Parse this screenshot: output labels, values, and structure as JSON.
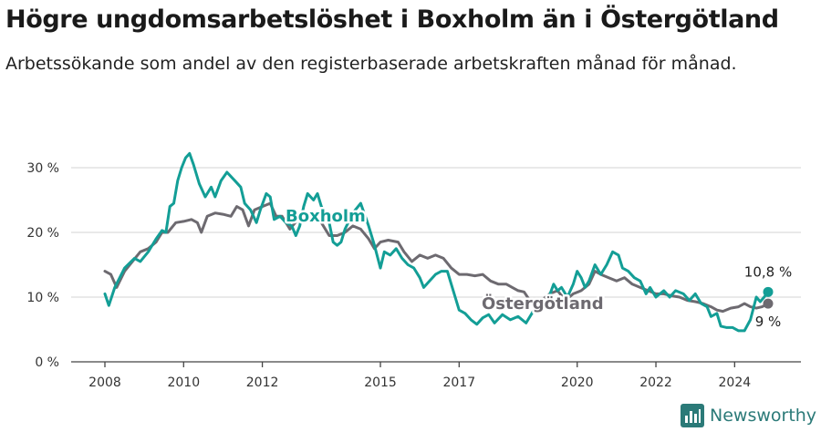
{
  "title": "Högre ungdomsarbetslöshet i Boxholm än i Östergötland",
  "subtitle": "Arbetssökande som andel av den registerbaserade arbetskraften månad för månad.",
  "brand": "Newsworthy",
  "colors": {
    "boxholm": "#139e96",
    "ostergotland": "#6d6a70",
    "grid": "#dcdcdc",
    "axis": "#444444",
    "brand": "#2b7a78"
  },
  "chart_data": {
    "type": "line",
    "title": "Högre ungdomsarbetslöshet i Boxholm än i Östergötland",
    "xlabel": "",
    "ylabel": "",
    "xlim": [
      2008,
      2024.85
    ],
    "ylim": [
      0,
      30
    ],
    "y_ticks": [
      0,
      10,
      20,
      30
    ],
    "y_tick_labels": [
      "0 %",
      "10 %",
      "20 %",
      "30 %"
    ],
    "x_ticks": [
      2008,
      2010,
      2012,
      2015,
      2017,
      2020,
      2022,
      2024
    ],
    "x_tick_labels": [
      "2008",
      "2010",
      "2012",
      "2015",
      "2017",
      "2020",
      "2022",
      "2024"
    ],
    "grid": true,
    "series": [
      {
        "name": "Boxholm",
        "end_label": "10,8 %",
        "points": [
          [
            2008.0,
            10.5
          ],
          [
            2008.1,
            8.7
          ],
          [
            2008.25,
            11.5
          ],
          [
            2008.5,
            14.5
          ],
          [
            2008.75,
            16.0
          ],
          [
            2008.9,
            15.5
          ],
          [
            2009.1,
            17.0
          ],
          [
            2009.3,
            19.0
          ],
          [
            2009.45,
            20.3
          ],
          [
            2009.55,
            20.0
          ],
          [
            2009.65,
            24.0
          ],
          [
            2009.75,
            24.5
          ],
          [
            2009.85,
            28.0
          ],
          [
            2009.95,
            30.0
          ],
          [
            2010.05,
            31.5
          ],
          [
            2010.15,
            32.2
          ],
          [
            2010.25,
            30.5
          ],
          [
            2010.4,
            27.5
          ],
          [
            2010.55,
            25.5
          ],
          [
            2010.7,
            27.0
          ],
          [
            2010.8,
            25.5
          ],
          [
            2010.95,
            28.0
          ],
          [
            2011.1,
            29.3
          ],
          [
            2011.3,
            28.0
          ],
          [
            2011.45,
            27.0
          ],
          [
            2011.55,
            24.5
          ],
          [
            2011.7,
            23.5
          ],
          [
            2011.85,
            21.5
          ],
          [
            2011.95,
            23.5
          ],
          [
            2012.1,
            26.0
          ],
          [
            2012.2,
            25.5
          ],
          [
            2012.3,
            22.0
          ],
          [
            2012.45,
            22.5
          ],
          [
            2012.6,
            21.5
          ],
          [
            2012.75,
            21.0
          ],
          [
            2012.85,
            19.5
          ],
          [
            2012.95,
            21.0
          ],
          [
            2013.05,
            24.0
          ],
          [
            2013.15,
            26.0
          ],
          [
            2013.3,
            25.0
          ],
          [
            2013.4,
            26.0
          ],
          [
            2013.5,
            24.0
          ],
          [
            2013.6,
            23.0
          ],
          [
            2013.7,
            21.5
          ],
          [
            2013.8,
            18.5
          ],
          [
            2013.9,
            18.0
          ],
          [
            2014.0,
            18.5
          ],
          [
            2014.1,
            20.5
          ],
          [
            2014.3,
            23.0
          ],
          [
            2014.5,
            24.5
          ],
          [
            2014.7,
            21.0
          ],
          [
            2014.85,
            18.0
          ],
          [
            2015.0,
            14.5
          ],
          [
            2015.1,
            17.0
          ],
          [
            2015.25,
            16.5
          ],
          [
            2015.4,
            17.5
          ],
          [
            2015.55,
            16.0
          ],
          [
            2015.7,
            15.0
          ],
          [
            2015.85,
            14.5
          ],
          [
            2016.0,
            13.0
          ],
          [
            2016.1,
            11.5
          ],
          [
            2016.25,
            12.5
          ],
          [
            2016.4,
            13.5
          ],
          [
            2016.55,
            14.0
          ],
          [
            2016.7,
            14.0
          ],
          [
            2016.8,
            12.0
          ],
          [
            2016.9,
            10.0
          ],
          [
            2017.0,
            8.0
          ],
          [
            2017.15,
            7.5
          ],
          [
            2017.3,
            6.5
          ],
          [
            2017.45,
            5.8
          ],
          [
            2017.6,
            6.8
          ],
          [
            2017.75,
            7.3
          ],
          [
            2017.9,
            6.0
          ],
          [
            2018.1,
            7.3
          ],
          [
            2018.3,
            6.5
          ],
          [
            2018.5,
            7.0
          ],
          [
            2018.7,
            6.0
          ],
          [
            2018.85,
            7.5
          ],
          [
            2018.95,
            8.5
          ],
          [
            2019.1,
            9.3
          ],
          [
            2019.25,
            9.5
          ],
          [
            2019.4,
            12.0
          ],
          [
            2019.5,
            11.0
          ],
          [
            2019.6,
            11.5
          ],
          [
            2019.75,
            10.0
          ],
          [
            2019.9,
            12.0
          ],
          [
            2020.0,
            14.0
          ],
          [
            2020.1,
            13.0
          ],
          [
            2020.2,
            11.5
          ],
          [
            2020.3,
            12.5
          ],
          [
            2020.45,
            15.0
          ],
          [
            2020.6,
            13.5
          ],
          [
            2020.75,
            15.0
          ],
          [
            2020.9,
            17.0
          ],
          [
            2021.05,
            16.5
          ],
          [
            2021.15,
            14.5
          ],
          [
            2021.3,
            14.0
          ],
          [
            2021.45,
            13.0
          ],
          [
            2021.6,
            12.5
          ],
          [
            2021.75,
            10.5
          ],
          [
            2021.85,
            11.5
          ],
          [
            2022.0,
            10.0
          ],
          [
            2022.2,
            11.0
          ],
          [
            2022.35,
            10.0
          ],
          [
            2022.5,
            11.0
          ],
          [
            2022.7,
            10.5
          ],
          [
            2022.85,
            9.5
          ],
          [
            2023.0,
            10.5
          ],
          [
            2023.15,
            9.0
          ],
          [
            2023.3,
            8.5
          ],
          [
            2023.4,
            7.0
          ],
          [
            2023.55,
            7.5
          ],
          [
            2023.65,
            5.5
          ],
          [
            2023.8,
            5.3
          ],
          [
            2023.95,
            5.3
          ],
          [
            2024.1,
            4.8
          ],
          [
            2024.25,
            4.8
          ],
          [
            2024.4,
            6.5
          ],
          [
            2024.55,
            10.0
          ],
          [
            2024.65,
            9.3
          ],
          [
            2024.75,
            10.0
          ],
          [
            2024.85,
            10.8
          ]
        ]
      },
      {
        "name": "Östergötland",
        "end_label": "9 %",
        "points": [
          [
            2008.0,
            14.0
          ],
          [
            2008.15,
            13.5
          ],
          [
            2008.3,
            11.5
          ],
          [
            2008.5,
            14.0
          ],
          [
            2008.7,
            15.5
          ],
          [
            2008.9,
            17.0
          ],
          [
            2009.1,
            17.5
          ],
          [
            2009.3,
            18.5
          ],
          [
            2009.45,
            20.0
          ],
          [
            2009.6,
            20.0
          ],
          [
            2009.8,
            21.5
          ],
          [
            2010.0,
            21.7
          ],
          [
            2010.2,
            22.0
          ],
          [
            2010.35,
            21.5
          ],
          [
            2010.45,
            20.0
          ],
          [
            2010.6,
            22.5
          ],
          [
            2010.8,
            23.0
          ],
          [
            2011.0,
            22.8
          ],
          [
            2011.2,
            22.5
          ],
          [
            2011.35,
            24.0
          ],
          [
            2011.5,
            23.5
          ],
          [
            2011.65,
            21.0
          ],
          [
            2011.8,
            23.5
          ],
          [
            2012.0,
            24.0
          ],
          [
            2012.2,
            24.5
          ],
          [
            2012.35,
            22.5
          ],
          [
            2012.5,
            22.5
          ],
          [
            2012.7,
            20.5
          ],
          [
            2012.9,
            22.0
          ],
          [
            2013.1,
            22.5
          ],
          [
            2013.3,
            22.0
          ],
          [
            2013.5,
            21.5
          ],
          [
            2013.7,
            19.5
          ],
          [
            2013.9,
            19.5
          ],
          [
            2014.1,
            20.0
          ],
          [
            2014.3,
            21.0
          ],
          [
            2014.5,
            20.5
          ],
          [
            2014.7,
            19.0
          ],
          [
            2014.85,
            17.5
          ],
          [
            2015.0,
            18.5
          ],
          [
            2015.2,
            18.8
          ],
          [
            2015.45,
            18.5
          ],
          [
            2015.6,
            17.0
          ],
          [
            2015.8,
            15.5
          ],
          [
            2016.0,
            16.5
          ],
          [
            2016.2,
            16.0
          ],
          [
            2016.4,
            16.5
          ],
          [
            2016.6,
            16.0
          ],
          [
            2016.8,
            14.5
          ],
          [
            2017.0,
            13.5
          ],
          [
            2017.2,
            13.5
          ],
          [
            2017.4,
            13.3
          ],
          [
            2017.6,
            13.5
          ],
          [
            2017.8,
            12.5
          ],
          [
            2018.0,
            12.0
          ],
          [
            2018.2,
            12.0
          ],
          [
            2018.35,
            11.5
          ],
          [
            2018.5,
            11.0
          ],
          [
            2018.65,
            10.8
          ],
          [
            2018.85,
            9.0
          ],
          [
            2019.05,
            9.3
          ],
          [
            2019.3,
            10.5
          ],
          [
            2019.5,
            11.0
          ],
          [
            2019.7,
            9.5
          ],
          [
            2019.9,
            10.5
          ],
          [
            2020.1,
            11.0
          ],
          [
            2020.3,
            12.0
          ],
          [
            2020.45,
            14.0
          ],
          [
            2020.6,
            13.5
          ],
          [
            2020.8,
            13.0
          ],
          [
            2021.0,
            12.5
          ],
          [
            2021.2,
            13.0
          ],
          [
            2021.4,
            12.0
          ],
          [
            2021.6,
            11.5
          ],
          [
            2021.8,
            11.0
          ],
          [
            2022.0,
            10.5
          ],
          [
            2022.2,
            10.5
          ],
          [
            2022.4,
            10.2
          ],
          [
            2022.6,
            10.0
          ],
          [
            2022.8,
            9.5
          ],
          [
            2023.0,
            9.3
          ],
          [
            2023.2,
            9.0
          ],
          [
            2023.4,
            8.5
          ],
          [
            2023.55,
            8.0
          ],
          [
            2023.7,
            7.8
          ],
          [
            2023.9,
            8.3
          ],
          [
            2024.1,
            8.5
          ],
          [
            2024.25,
            9.0
          ],
          [
            2024.4,
            8.5
          ],
          [
            2024.55,
            8.3
          ],
          [
            2024.7,
            8.5
          ],
          [
            2024.85,
            9.0
          ]
        ]
      }
    ]
  }
}
